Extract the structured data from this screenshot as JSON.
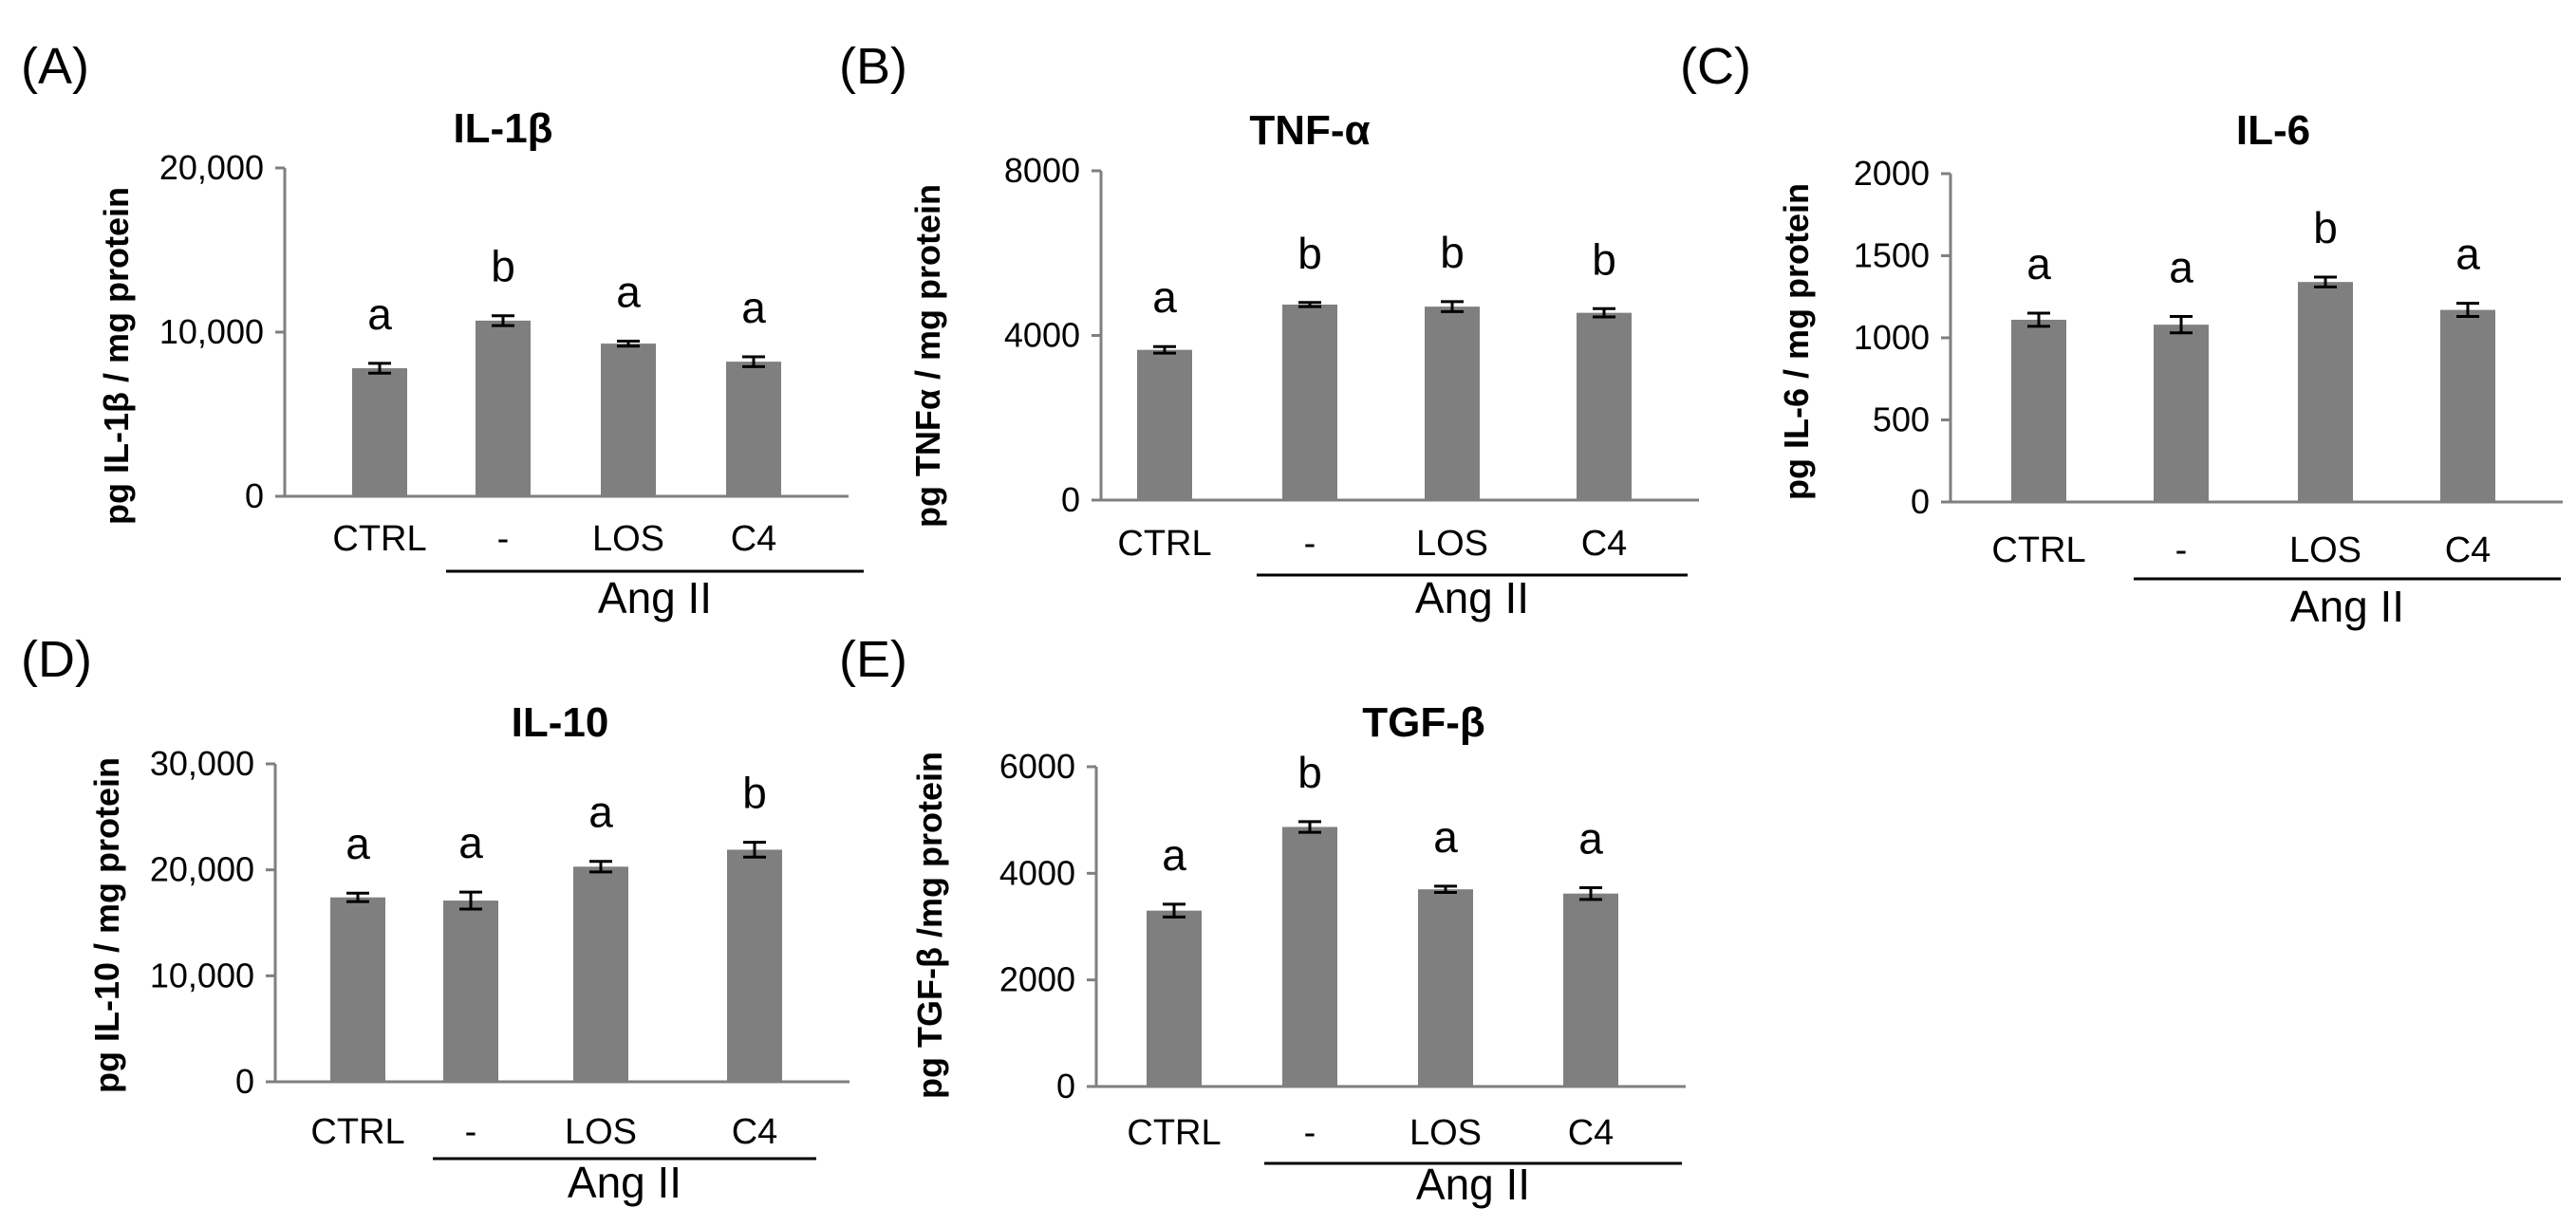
{
  "colors": {
    "bar": "#7f7f7f",
    "axis": "#7f7f7f",
    "text": "#000000",
    "error_bar": "#000000"
  },
  "chart_data": [
    {
      "panel": "(A)",
      "type": "bar",
      "title": "IL-1β",
      "ylabel": "pg IL-1β / mg protein",
      "ylim": [
        0,
        20000
      ],
      "yticks": [
        "0",
        "10,000",
        "20,000"
      ],
      "categories": [
        "CTRL",
        "-",
        "LOS",
        "C4"
      ],
      "values": [
        7800,
        10700,
        9300,
        8200
      ],
      "errors": [
        300,
        300,
        150,
        300
      ],
      "significance": [
        "a",
        "b",
        "a",
        "a"
      ],
      "group_label": "Ang II"
    },
    {
      "panel": "(B)",
      "type": "bar",
      "title": "TNF-α",
      "ylabel": "pg TNFα / mg protein",
      "ylim": [
        0,
        8000
      ],
      "yticks": [
        "0",
        "4000",
        "8000"
      ],
      "categories": [
        "CTRL",
        "-",
        "LOS",
        "C4"
      ],
      "values": [
        3650,
        4750,
        4700,
        4550
      ],
      "errors": [
        80,
        50,
        120,
        100
      ],
      "significance": [
        "a",
        "b",
        "b",
        "b"
      ],
      "group_label": "Ang II"
    },
    {
      "panel": "(C)",
      "type": "bar",
      "title": "IL-6",
      "ylabel": "pg IL-6 / mg protein",
      "ylim": [
        0,
        2000
      ],
      "yticks": [
        "0",
        "500",
        "1000",
        "1500",
        "2000"
      ],
      "categories": [
        "CTRL",
        "-",
        "LOS",
        "C4"
      ],
      "values": [
        1110,
        1080,
        1340,
        1170
      ],
      "errors": [
        40,
        50,
        30,
        40
      ],
      "significance": [
        "a",
        "a",
        "b",
        "a"
      ],
      "group_label": "Ang II"
    },
    {
      "panel": "(D)",
      "type": "bar",
      "title": "IL-10",
      "ylabel": "pg IL-10 / mg protein",
      "ylim": [
        0,
        30000
      ],
      "yticks": [
        "0",
        "10,000",
        "20,000",
        "30,000"
      ],
      "categories": [
        "CTRL",
        "-",
        "LOS",
        "C4"
      ],
      "values": [
        17400,
        17100,
        20300,
        21900
      ],
      "errors": [
        400,
        800,
        500,
        700
      ],
      "significance": [
        "a",
        "a",
        "a",
        "b"
      ],
      "group_label": "Ang II"
    },
    {
      "panel": "(E)",
      "type": "bar",
      "title": "TGF-β",
      "ylabel": "pg TGF-β /mg protein",
      "ylim": [
        0,
        6000
      ],
      "yticks": [
        "0",
        "2000",
        "4000",
        "6000"
      ],
      "categories": [
        "CTRL",
        "-",
        "LOS",
        "C4"
      ],
      "values": [
        3300,
        4870,
        3700,
        3620
      ],
      "errors": [
        120,
        100,
        60,
        110
      ],
      "significance": [
        "a",
        "b",
        "a",
        "a"
      ],
      "group_label": "Ang II"
    }
  ]
}
